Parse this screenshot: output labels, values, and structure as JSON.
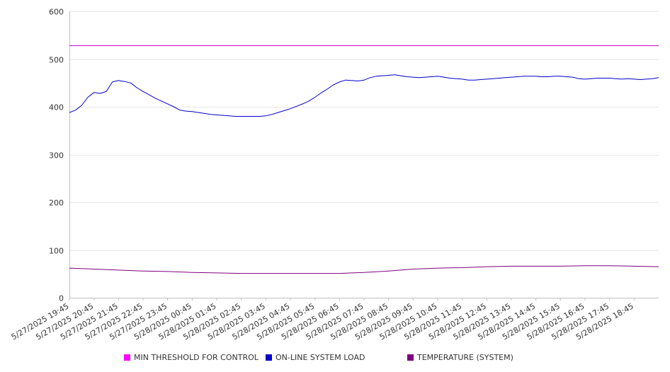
{
  "chart_data": {
    "type": "line",
    "title": "",
    "xlabel": "",
    "ylabel": "",
    "ylim": [
      0,
      600
    ],
    "yticks": [
      0,
      100,
      200,
      300,
      400,
      500,
      600
    ],
    "xlim": [
      "5/27/2025 19:45",
      "5/28/2025 19:45"
    ],
    "x_tick_labels": [
      "5/27/2025 19:45",
      "5/27/2025 20:45",
      "5/27/2025 21:45",
      "5/27/2025 22:45",
      "5/27/2025 23:45",
      "5/28/2025 00:45",
      "5/28/2025 01:45",
      "5/28/2025 02:45",
      "5/28/2025 03:45",
      "5/28/2025 04:45",
      "5/28/2025 05:45",
      "5/28/2025 06:45",
      "5/28/2025 07:45",
      "5/28/2025 08:45",
      "5/28/2025 09:45",
      "5/28/2025 10:45",
      "5/28/2025 11:45",
      "5/28/2025 12:45",
      "5/28/2025 13:45",
      "5/28/2025 14:45",
      "5/28/2025 15:45",
      "5/28/2025 16:45",
      "5/28/2025 17:45",
      "5/28/2025 18:45"
    ],
    "grid": "horizontal",
    "legend_position": "bottom",
    "series": [
      {
        "name": "MIN THRESHOLD FOR CONTROL",
        "color": "#cc00cc",
        "points": [
          [
            "5/27/2025 19:45",
            528
          ],
          [
            "5/28/2025 19:45",
            528
          ]
        ]
      },
      {
        "name": "ON-LINE SYSTEM LOAD",
        "color": "#0000cc",
        "points": [
          [
            "5/27/2025 19:45",
            388
          ],
          [
            "5/27/2025 20:00",
            393
          ],
          [
            "5/27/2025 20:15",
            403
          ],
          [
            "5/27/2025 20:30",
            420
          ],
          [
            "5/27/2025 20:45",
            430
          ],
          [
            "5/27/2025 21:00",
            428
          ],
          [
            "5/27/2025 21:15",
            432
          ],
          [
            "5/27/2025 21:30",
            452
          ],
          [
            "5/27/2025 21:45",
            455
          ],
          [
            "5/27/2025 22:00",
            453
          ],
          [
            "5/27/2025 22:15",
            450
          ],
          [
            "5/27/2025 22:30",
            440
          ],
          [
            "5/27/2025 22:45",
            432
          ],
          [
            "5/27/2025 23:00",
            425
          ],
          [
            "5/27/2025 23:15",
            418
          ],
          [
            "5/27/2025 23:30",
            412
          ],
          [
            "5/27/2025 23:45",
            406
          ],
          [
            "5/28/2025 00:00",
            400
          ],
          [
            "5/28/2025 00:15",
            393
          ],
          [
            "5/28/2025 00:30",
            391
          ],
          [
            "5/28/2025 00:45",
            390
          ],
          [
            "5/28/2025 01:00",
            388
          ],
          [
            "5/28/2025 01:15",
            386
          ],
          [
            "5/28/2025 01:30",
            384
          ],
          [
            "5/28/2025 01:45",
            383
          ],
          [
            "5/28/2025 02:00",
            382
          ],
          [
            "5/28/2025 02:15",
            381
          ],
          [
            "5/28/2025 02:30",
            380
          ],
          [
            "5/28/2025 02:45",
            380
          ],
          [
            "5/28/2025 03:00",
            380
          ],
          [
            "5/28/2025 03:15",
            380
          ],
          [
            "5/28/2025 03:30",
            380
          ],
          [
            "5/28/2025 03:45",
            381
          ],
          [
            "5/28/2025 04:00",
            384
          ],
          [
            "5/28/2025 04:15",
            388
          ],
          [
            "5/28/2025 04:30",
            392
          ],
          [
            "5/28/2025 04:45",
            396
          ],
          [
            "5/28/2025 05:00",
            401
          ],
          [
            "5/28/2025 05:15",
            406
          ],
          [
            "5/28/2025 05:30",
            412
          ],
          [
            "5/28/2025 05:45",
            420
          ],
          [
            "5/28/2025 06:00",
            429
          ],
          [
            "5/28/2025 06:15",
            437
          ],
          [
            "5/28/2025 06:30",
            446
          ],
          [
            "5/28/2025 06:45",
            452
          ],
          [
            "5/28/2025 07:00",
            456
          ],
          [
            "5/28/2025 07:15",
            455
          ],
          [
            "5/28/2025 07:30",
            454
          ],
          [
            "5/28/2025 07:45",
            456
          ],
          [
            "5/28/2025 08:00",
            461
          ],
          [
            "5/28/2025 08:15",
            464
          ],
          [
            "5/28/2025 08:30",
            465
          ],
          [
            "5/28/2025 08:45",
            466
          ],
          [
            "5/28/2025 09:00",
            467
          ],
          [
            "5/28/2025 09:15",
            465
          ],
          [
            "5/28/2025 09:30",
            463
          ],
          [
            "5/28/2025 09:45",
            462
          ],
          [
            "5/28/2025 10:00",
            461
          ],
          [
            "5/28/2025 10:15",
            462
          ],
          [
            "5/28/2025 10:30",
            463
          ],
          [
            "5/28/2025 10:45",
            464
          ],
          [
            "5/28/2025 11:00",
            462
          ],
          [
            "5/28/2025 11:15",
            460
          ],
          [
            "5/28/2025 11:30",
            459
          ],
          [
            "5/28/2025 11:45",
            458
          ],
          [
            "5/28/2025 12:00",
            456
          ],
          [
            "5/28/2025 12:15",
            456
          ],
          [
            "5/28/2025 12:30",
            457
          ],
          [
            "5/28/2025 12:45",
            458
          ],
          [
            "5/28/2025 13:00",
            459
          ],
          [
            "5/28/2025 13:15",
            460
          ],
          [
            "5/28/2025 13:30",
            461
          ],
          [
            "5/28/2025 13:45",
            462
          ],
          [
            "5/28/2025 14:00",
            463
          ],
          [
            "5/28/2025 14:15",
            464
          ],
          [
            "5/28/2025 14:30",
            464
          ],
          [
            "5/28/2025 14:45",
            464
          ],
          [
            "5/28/2025 15:00",
            463
          ],
          [
            "5/28/2025 15:15",
            463
          ],
          [
            "5/28/2025 15:30",
            464
          ],
          [
            "5/28/2025 15:45",
            464
          ],
          [
            "5/28/2025 16:00",
            463
          ],
          [
            "5/28/2025 16:15",
            462
          ],
          [
            "5/28/2025 16:30",
            459
          ],
          [
            "5/28/2025 16:45",
            458
          ],
          [
            "5/28/2025 17:00",
            459
          ],
          [
            "5/28/2025 17:15",
            460
          ],
          [
            "5/28/2025 17:30",
            460
          ],
          [
            "5/28/2025 17:45",
            460
          ],
          [
            "5/28/2025 18:00",
            459
          ],
          [
            "5/28/2025 18:15",
            458
          ],
          [
            "5/28/2025 18:30",
            459
          ],
          [
            "5/28/2025 18:45",
            458
          ],
          [
            "5/28/2025 19:00",
            457
          ],
          [
            "5/28/2025 19:15",
            458
          ],
          [
            "5/28/2025 19:30",
            459
          ],
          [
            "5/28/2025 19:45",
            461
          ]
        ]
      },
      {
        "name": "TEMPERATURE (SYSTEM)",
        "color": "#800080",
        "points": [
          [
            "5/27/2025 19:45",
            62
          ],
          [
            "5/27/2025 20:45",
            60
          ],
          [
            "5/27/2025 21:45",
            58
          ],
          [
            "5/27/2025 22:45",
            56
          ],
          [
            "5/27/2025 23:45",
            55
          ],
          [
            "5/28/2025 00:45",
            53
          ],
          [
            "5/28/2025 01:45",
            52
          ],
          [
            "5/28/2025 02:45",
            51
          ],
          [
            "5/28/2025 03:45",
            51
          ],
          [
            "5/28/2025 04:45",
            51
          ],
          [
            "5/28/2025 05:45",
            51
          ],
          [
            "5/28/2025 06:45",
            51
          ],
          [
            "5/28/2025 07:45",
            53
          ],
          [
            "5/28/2025 08:45",
            56
          ],
          [
            "5/28/2025 09:45",
            60
          ],
          [
            "5/28/2025 10:45",
            62
          ],
          [
            "5/28/2025 11:45",
            63
          ],
          [
            "5/28/2025 12:45",
            65
          ],
          [
            "5/28/2025 13:45",
            66
          ],
          [
            "5/28/2025 14:45",
            66
          ],
          [
            "5/28/2025 15:45",
            66
          ],
          [
            "5/28/2025 16:45",
            67
          ],
          [
            "5/28/2025 17:45",
            67
          ],
          [
            "5/28/2025 18:45",
            66
          ],
          [
            "5/28/2025 19:45",
            65
          ]
        ]
      }
    ]
  }
}
